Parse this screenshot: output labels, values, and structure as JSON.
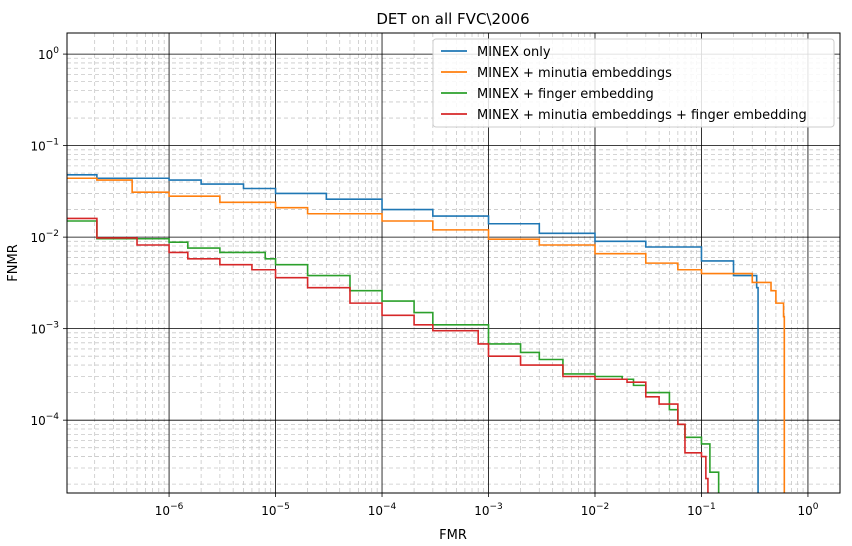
{
  "chart_data": {
    "type": "line",
    "title": "DET on all FVC\\2006",
    "xlabel": "FMR",
    "ylabel": "FNMR",
    "xscale": "log",
    "yscale": "log",
    "xlim": [
      1.1e-07,
      2.0
    ],
    "ylim": [
      1.6e-05,
      1.7
    ],
    "grid": true,
    "legend_position": "top-right",
    "x_ticks": [
      {
        "value": 1e-06,
        "base": "10",
        "exp": "−6"
      },
      {
        "value": 1e-05,
        "base": "10",
        "exp": "−5"
      },
      {
        "value": 0.0001,
        "base": "10",
        "exp": "−4"
      },
      {
        "value": 0.001,
        "base": "10",
        "exp": "−3"
      },
      {
        "value": 0.01,
        "base": "10",
        "exp": "−2"
      },
      {
        "value": 0.1,
        "base": "10",
        "exp": "−1"
      },
      {
        "value": 1,
        "base": "10",
        "exp": "0"
      }
    ],
    "y_ticks": [
      {
        "value": 0.0001,
        "base": "10",
        "exp": "−4"
      },
      {
        "value": 0.001,
        "base": "10",
        "exp": "−3"
      },
      {
        "value": 0.01,
        "base": "10",
        "exp": "−2"
      },
      {
        "value": 0.1,
        "base": "10",
        "exp": "−1"
      },
      {
        "value": 1,
        "base": "10",
        "exp": "0"
      }
    ],
    "series": [
      {
        "name": "MINEX only",
        "color": "#1f77b4",
        "points": [
          [
            1e-07,
            0.048
          ],
          [
            2.1e-07,
            0.048
          ],
          [
            2.1e-07,
            0.044
          ],
          [
            1e-06,
            0.042
          ],
          [
            2e-06,
            0.038
          ],
          [
            5e-06,
            0.034
          ],
          [
            1e-05,
            0.03
          ],
          [
            3e-05,
            0.026
          ],
          [
            0.0001,
            0.02
          ],
          [
            0.0003,
            0.017
          ],
          [
            0.001,
            0.014
          ],
          [
            0.003,
            0.011
          ],
          [
            0.01,
            0.009
          ],
          [
            0.03,
            0.0078
          ],
          [
            0.1,
            0.0055
          ],
          [
            0.2,
            0.0038
          ],
          [
            0.33,
            0.0028
          ],
          [
            0.34,
            0.0026
          ],
          [
            0.34,
            1e-05
          ]
        ]
      },
      {
        "name": "MINEX + minutia embeddings",
        "color": "#ff7f0e",
        "points": [
          [
            1e-07,
            0.044
          ],
          [
            2.1e-07,
            0.044
          ],
          [
            2.1e-07,
            0.042
          ],
          [
            4.5e-07,
            0.042
          ],
          [
            4.5e-07,
            0.031
          ],
          [
            1e-06,
            0.028
          ],
          [
            3e-06,
            0.024
          ],
          [
            1e-05,
            0.021
          ],
          [
            2e-05,
            0.018
          ],
          [
            0.0001,
            0.015
          ],
          [
            0.0003,
            0.012
          ],
          [
            0.001,
            0.0095
          ],
          [
            0.003,
            0.0082
          ],
          [
            0.01,
            0.0066
          ],
          [
            0.03,
            0.0052
          ],
          [
            0.06,
            0.0044
          ],
          [
            0.1,
            0.004
          ],
          [
            0.3,
            0.0032
          ],
          [
            0.45,
            0.0026
          ],
          [
            0.5,
            0.0019
          ],
          [
            0.59,
            0.00135
          ],
          [
            0.6,
            0.00135
          ],
          [
            0.6,
            1e-05
          ]
        ]
      },
      {
        "name": "MINEX + finger embedding",
        "color": "#2ca02c",
        "points": [
          [
            1e-07,
            0.015
          ],
          [
            2.1e-07,
            0.015
          ],
          [
            2.1e-07,
            0.0096
          ],
          [
            1e-06,
            0.0088
          ],
          [
            1.5e-06,
            0.0076
          ],
          [
            3e-06,
            0.0068
          ],
          [
            8e-06,
            0.0058
          ],
          [
            1e-05,
            0.005
          ],
          [
            2e-05,
            0.0038
          ],
          [
            5e-05,
            0.0026
          ],
          [
            0.0001,
            0.002
          ],
          [
            0.0002,
            0.0015
          ],
          [
            0.0003,
            0.0011
          ],
          [
            0.001,
            0.00068
          ],
          [
            0.002,
            0.00055
          ],
          [
            0.003,
            0.00046
          ],
          [
            0.005,
            0.00032
          ],
          [
            0.01,
            0.0003
          ],
          [
            0.018,
            0.00028
          ],
          [
            0.023,
            0.00024
          ],
          [
            0.03,
            0.0002
          ],
          [
            0.05,
            0.00013
          ],
          [
            0.06,
            9e-05
          ],
          [
            0.07,
            6.5e-05
          ],
          [
            0.1,
            5.5e-05
          ],
          [
            0.12,
            2.7e-05
          ],
          [
            0.145,
            2.7e-05
          ],
          [
            0.145,
            1e-05
          ]
        ]
      },
      {
        "name": "MINEX + minutia embeddings + finger embedding",
        "color": "#d62728",
        "points": [
          [
            1e-07,
            0.016
          ],
          [
            2.1e-07,
            0.016
          ],
          [
            2.1e-07,
            0.0098
          ],
          [
            5e-07,
            0.0082
          ],
          [
            1e-06,
            0.0068
          ],
          [
            1.5e-06,
            0.0058
          ],
          [
            3e-06,
            0.005
          ],
          [
            6e-06,
            0.0044
          ],
          [
            1e-05,
            0.0036
          ],
          [
            2e-05,
            0.0028
          ],
          [
            5e-05,
            0.0019
          ],
          [
            0.0001,
            0.0014
          ],
          [
            0.0002,
            0.0011
          ],
          [
            0.0003,
            0.00095
          ],
          [
            0.0008,
            0.00068
          ],
          [
            0.001,
            0.0005
          ],
          [
            0.002,
            0.0004
          ],
          [
            0.003,
            0.0004
          ],
          [
            0.005,
            0.0003
          ],
          [
            0.01,
            0.00028
          ],
          [
            0.02,
            0.00026
          ],
          [
            0.03,
            0.00018
          ],
          [
            0.04,
            0.00015
          ],
          [
            0.06,
            9e-05
          ],
          [
            0.07,
            4.4e-05
          ],
          [
            0.1,
            4e-05
          ],
          [
            0.11,
            2.3e-05
          ],
          [
            0.115,
            1e-05
          ]
        ]
      }
    ]
  }
}
